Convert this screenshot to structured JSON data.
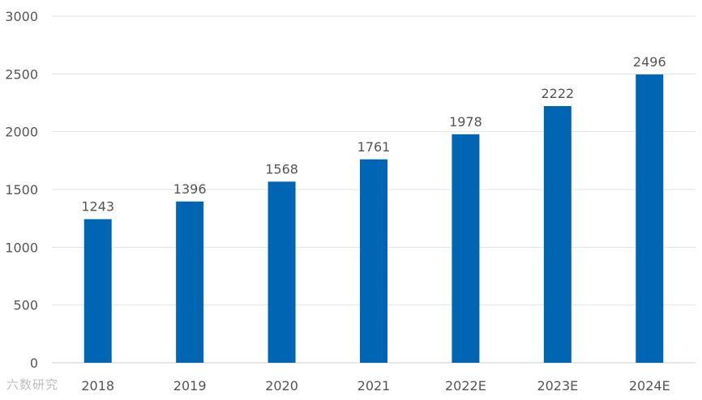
{
  "chart_data": {
    "type": "bar",
    "categories": [
      "2018",
      "2019",
      "2020",
      "2021",
      "2022E",
      "2023E",
      "2024E"
    ],
    "values": [
      1243,
      1396,
      1568,
      1761,
      1978,
      2222,
      2496
    ],
    "ylim": [
      0,
      3000
    ],
    "yticks": [
      0,
      500,
      1000,
      1500,
      2000,
      2500,
      3000
    ],
    "grid": true,
    "bar_color": "#0066b3",
    "data_labels": true
  },
  "watermark": "六数研究"
}
